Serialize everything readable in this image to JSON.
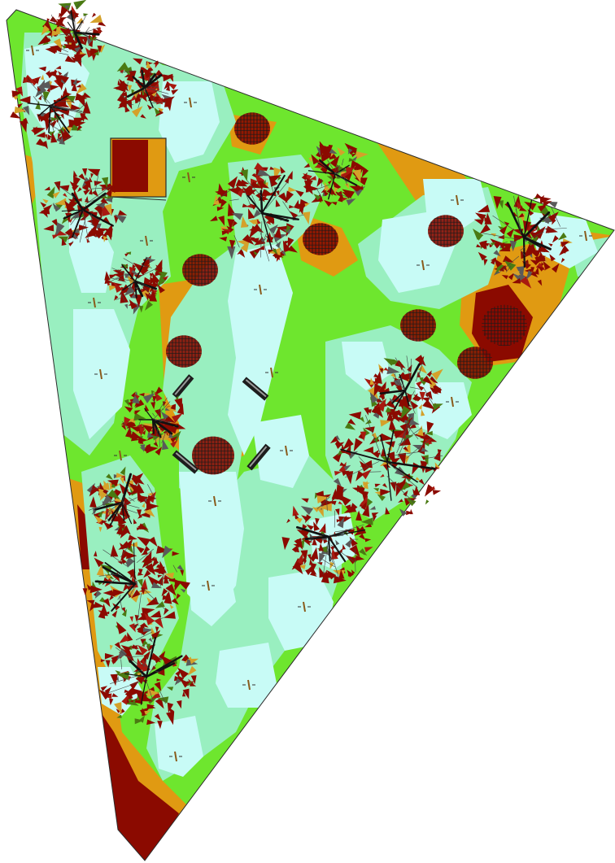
{
  "map": {
    "type": "shade-heatmap-site-plan",
    "legend": "none",
    "zone_colors": {
      "deep_shade": "#8b0a00",
      "shade": "#e09a12",
      "partial": "#6ee62e",
      "light": "#99efc0",
      "full_sun": "#c8fbf6"
    },
    "outline_color": "#2b2b2b",
    "leaf_colors": [
      "#8b0a00",
      "#a81a10",
      "#d4a12a",
      "#4a7a12",
      "#5a5a5a"
    ],
    "icons": {
      "tree": "tree-canopy-icon",
      "shrub": "shrub-icon",
      "bench": "bench-icon",
      "planter": "planter-box-icon",
      "marker": "grid-marker-icon"
    },
    "counts": {
      "large_trees": 14,
      "shrubs": 10,
      "benches": 4,
      "planters": 1
    }
  }
}
